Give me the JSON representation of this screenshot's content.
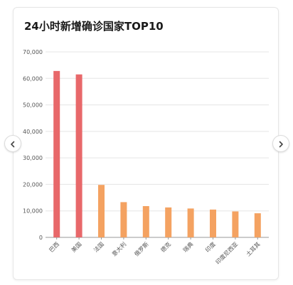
{
  "title": "24小时新增确诊国家TOP10",
  "colors": {
    "highlight": "#e8686a",
    "normal": "#f4a261",
    "grid": "#e5e5e5",
    "axis": "#999999"
  },
  "icons": {
    "prev": "chevron-left-icon",
    "next": "chevron-right-icon"
  },
  "chart_data": {
    "type": "bar",
    "title": "24小时新增确诊国家TOP10",
    "categories": [
      "巴西",
      "美国",
      "法国",
      "意大利",
      "俄罗斯",
      "德克",
      "瑞典",
      "印度",
      "印度尼西亚",
      "土耳其"
    ],
    "values": [
      62800,
      61500,
      19800,
      13300,
      11800,
      11300,
      10900,
      10500,
      9800,
      9100
    ],
    "highlight_count": 2,
    "ylim": [
      0,
      70000
    ],
    "yticks": [
      "0",
      "10,000",
      "20,000",
      "30,000",
      "40,000",
      "50,000",
      "60,000",
      "70,000"
    ],
    "ytick_values": [
      0,
      10000,
      20000,
      30000,
      40000,
      50000,
      60000,
      70000
    ],
    "grid": true
  }
}
